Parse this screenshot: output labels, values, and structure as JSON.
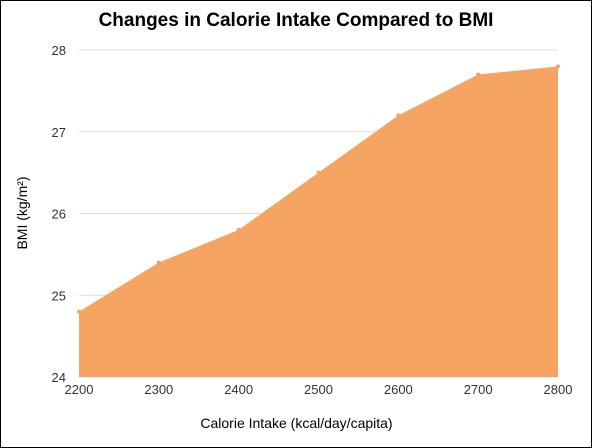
{
  "chart_data": {
    "type": "area",
    "title": "Changes in Calorie Intake Compared to BMI",
    "xlabel": "Calorie Intake (kcal/day/capita)",
    "ylabel": "BMI  (kg/m²)",
    "x": [
      2200,
      2300,
      2400,
      2500,
      2600,
      2700,
      2800
    ],
    "series": [
      {
        "values": [
          24.8,
          25.4,
          25.8,
          26.5,
          27.2,
          27.7,
          27.8
        ]
      }
    ],
    "xlim": [
      2200,
      2800
    ],
    "ylim": [
      24,
      28
    ],
    "xticks": [
      "2200",
      "2300",
      "2400",
      "2500",
      "2600",
      "2700",
      "2800"
    ],
    "yticks": [
      "24",
      "25",
      "26",
      "27",
      "28"
    ],
    "grid": true,
    "fill_color": "#F5A461",
    "grid_color": "#DDDDDD",
    "legend": "none"
  }
}
